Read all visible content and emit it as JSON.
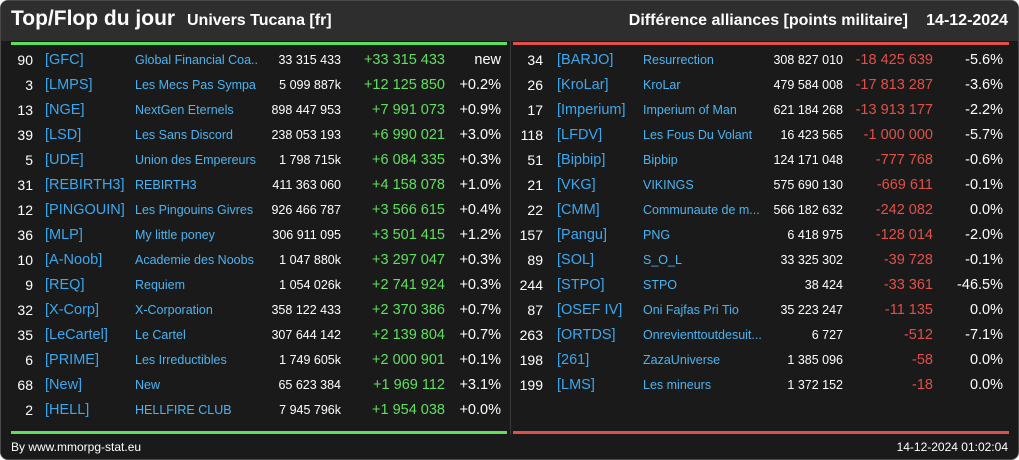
{
  "header": {
    "title": "Top/Flop du jour",
    "universe": "Univers Tucana [fr]",
    "subtitle": "Différence alliances [points militaire]",
    "date": "14-12-2024"
  },
  "colors": {
    "positive": "#5ee05e",
    "negative": "#e0504a",
    "tag": "#3aa8f0"
  },
  "top": [
    {
      "rank": "90",
      "tag": "[GFC]",
      "name": "Global Financial Coa...",
      "points": "33 315 433",
      "diff": "+33 315 433",
      "pct": "new"
    },
    {
      "rank": "3",
      "tag": "[LMPS]",
      "name": "Les Mecs Pas Sympa",
      "points": "5 099 887k",
      "diff": "+12 125 850",
      "pct": "+0.2%"
    },
    {
      "rank": "13",
      "tag": "[NGE]",
      "name": "NextGen Eternels",
      "points": "898 447 953",
      "diff": "+7 991 073",
      "pct": "+0.9%"
    },
    {
      "rank": "39",
      "tag": "[LSD]",
      "name": "Les Sans Discord",
      "points": "238 053 193",
      "diff": "+6 990 021",
      "pct": "+3.0%"
    },
    {
      "rank": "5",
      "tag": "[UDE]",
      "name": "Union des Empereurs",
      "points": "1 798 715k",
      "diff": "+6 084 335",
      "pct": "+0.3%"
    },
    {
      "rank": "31",
      "tag": "[REBIRTH3]",
      "name": "REBIRTH3",
      "points": "411 363 060",
      "diff": "+4 158 078",
      "pct": "+1.0%"
    },
    {
      "rank": "12",
      "tag": "[PINGOUIN]",
      "name": "Les Pingouins Givres",
      "points": "926 466 787",
      "diff": "+3 566 615",
      "pct": "+0.4%"
    },
    {
      "rank": "36",
      "tag": "[MLP]",
      "name": "My little poney",
      "points": "306 911 095",
      "diff": "+3 501 415",
      "pct": "+1.2%"
    },
    {
      "rank": "10",
      "tag": "[A-Noob]",
      "name": "Academie des Noobs",
      "points": "1 047 880k",
      "diff": "+3 297 047",
      "pct": "+0.3%"
    },
    {
      "rank": "9",
      "tag": "[REQ]",
      "name": "Requiem",
      "points": "1 054 026k",
      "diff": "+2 741 924",
      "pct": "+0.3%"
    },
    {
      "rank": "32",
      "tag": "[X-Corp]",
      "name": "X-Corporation",
      "points": "358 122 433",
      "diff": "+2 370 386",
      "pct": "+0.7%"
    },
    {
      "rank": "35",
      "tag": "[LeCartel]",
      "name": "Le Cartel",
      "points": "307 644 142",
      "diff": "+2 139 804",
      "pct": "+0.7%"
    },
    {
      "rank": "6",
      "tag": "[PRIME]",
      "name": "Les Irreductibles",
      "points": "1 749 605k",
      "diff": "+2 000 901",
      "pct": "+0.1%"
    },
    {
      "rank": "68",
      "tag": "[New]",
      "name": "New",
      "points": "65 623 384",
      "diff": "+1 969 112",
      "pct": "+3.1%"
    },
    {
      "rank": "2",
      "tag": "[HELL]",
      "name": "HELLFIRE CLUB",
      "points": "7 945 796k",
      "diff": "+1 954 038",
      "pct": "+0.0%"
    }
  ],
  "flop": [
    {
      "rank": "34",
      "tag": "[BARJO]",
      "name": "Resurrection",
      "points": "308 827 010",
      "diff": "-18 425 639",
      "pct": "-5.6%"
    },
    {
      "rank": "26",
      "tag": "[KroLar]",
      "name": "KroLar",
      "points": "479 584 008",
      "diff": "-17 813 287",
      "pct": "-3.6%"
    },
    {
      "rank": "17",
      "tag": "[Imperium]",
      "name": "Imperium of Man",
      "points": "621 184 268",
      "diff": "-13 913 177",
      "pct": "-2.2%"
    },
    {
      "rank": "118",
      "tag": "[LFDV]",
      "name": "Les Fous Du Volant",
      "points": "16 423 565",
      "diff": "-1 000 000",
      "pct": "-5.7%"
    },
    {
      "rank": "51",
      "tag": "[Bipbip]",
      "name": "Bipbip",
      "points": "124 171 048",
      "diff": "-777 768",
      "pct": "-0.6%"
    },
    {
      "rank": "21",
      "tag": "[VKG]",
      "name": "VIKINGS",
      "points": "575 690 130",
      "diff": "-669 611",
      "pct": "-0.1%"
    },
    {
      "rank": "22",
      "tag": "[CMM]",
      "name": "Communaute de m...",
      "points": "566 182 632",
      "diff": "-242 082",
      "pct": "0.0%"
    },
    {
      "rank": "157",
      "tag": "[Pangu]",
      "name": "PNG",
      "points": "6 418 975",
      "diff": "-128 014",
      "pct": "-2.0%"
    },
    {
      "rank": "89",
      "tag": "[SOL]",
      "name": "S_O_L",
      "points": "33 325 302",
      "diff": "-39 728",
      "pct": "-0.1%"
    },
    {
      "rank": "244",
      "tag": "[STPO]",
      "name": "STPO",
      "points": "38 424",
      "diff": "-33 361",
      "pct": "-46.5%"
    },
    {
      "rank": "87",
      "tag": "[OSEF IV]",
      "name": "Oni Fajfas Pri Tio",
      "points": "35 223 247",
      "diff": "-11 135",
      "pct": "0.0%"
    },
    {
      "rank": "263",
      "tag": "[ORTDS]",
      "name": "Onrevienttoutdesuit...",
      "points": "6 727",
      "diff": "-512",
      "pct": "-7.1%"
    },
    {
      "rank": "198",
      "tag": "[261]",
      "name": "ZazaUniverse",
      "points": "1 385 096",
      "diff": "-58",
      "pct": "0.0%"
    },
    {
      "rank": "199",
      "tag": "[LMS]",
      "name": "Les mineurs",
      "points": "1 372 152",
      "diff": "-18",
      "pct": "0.0%"
    }
  ],
  "footer": {
    "credit": "By www.mmorpg-stat.eu",
    "timestamp": "14-12-2024 01:02:04"
  }
}
